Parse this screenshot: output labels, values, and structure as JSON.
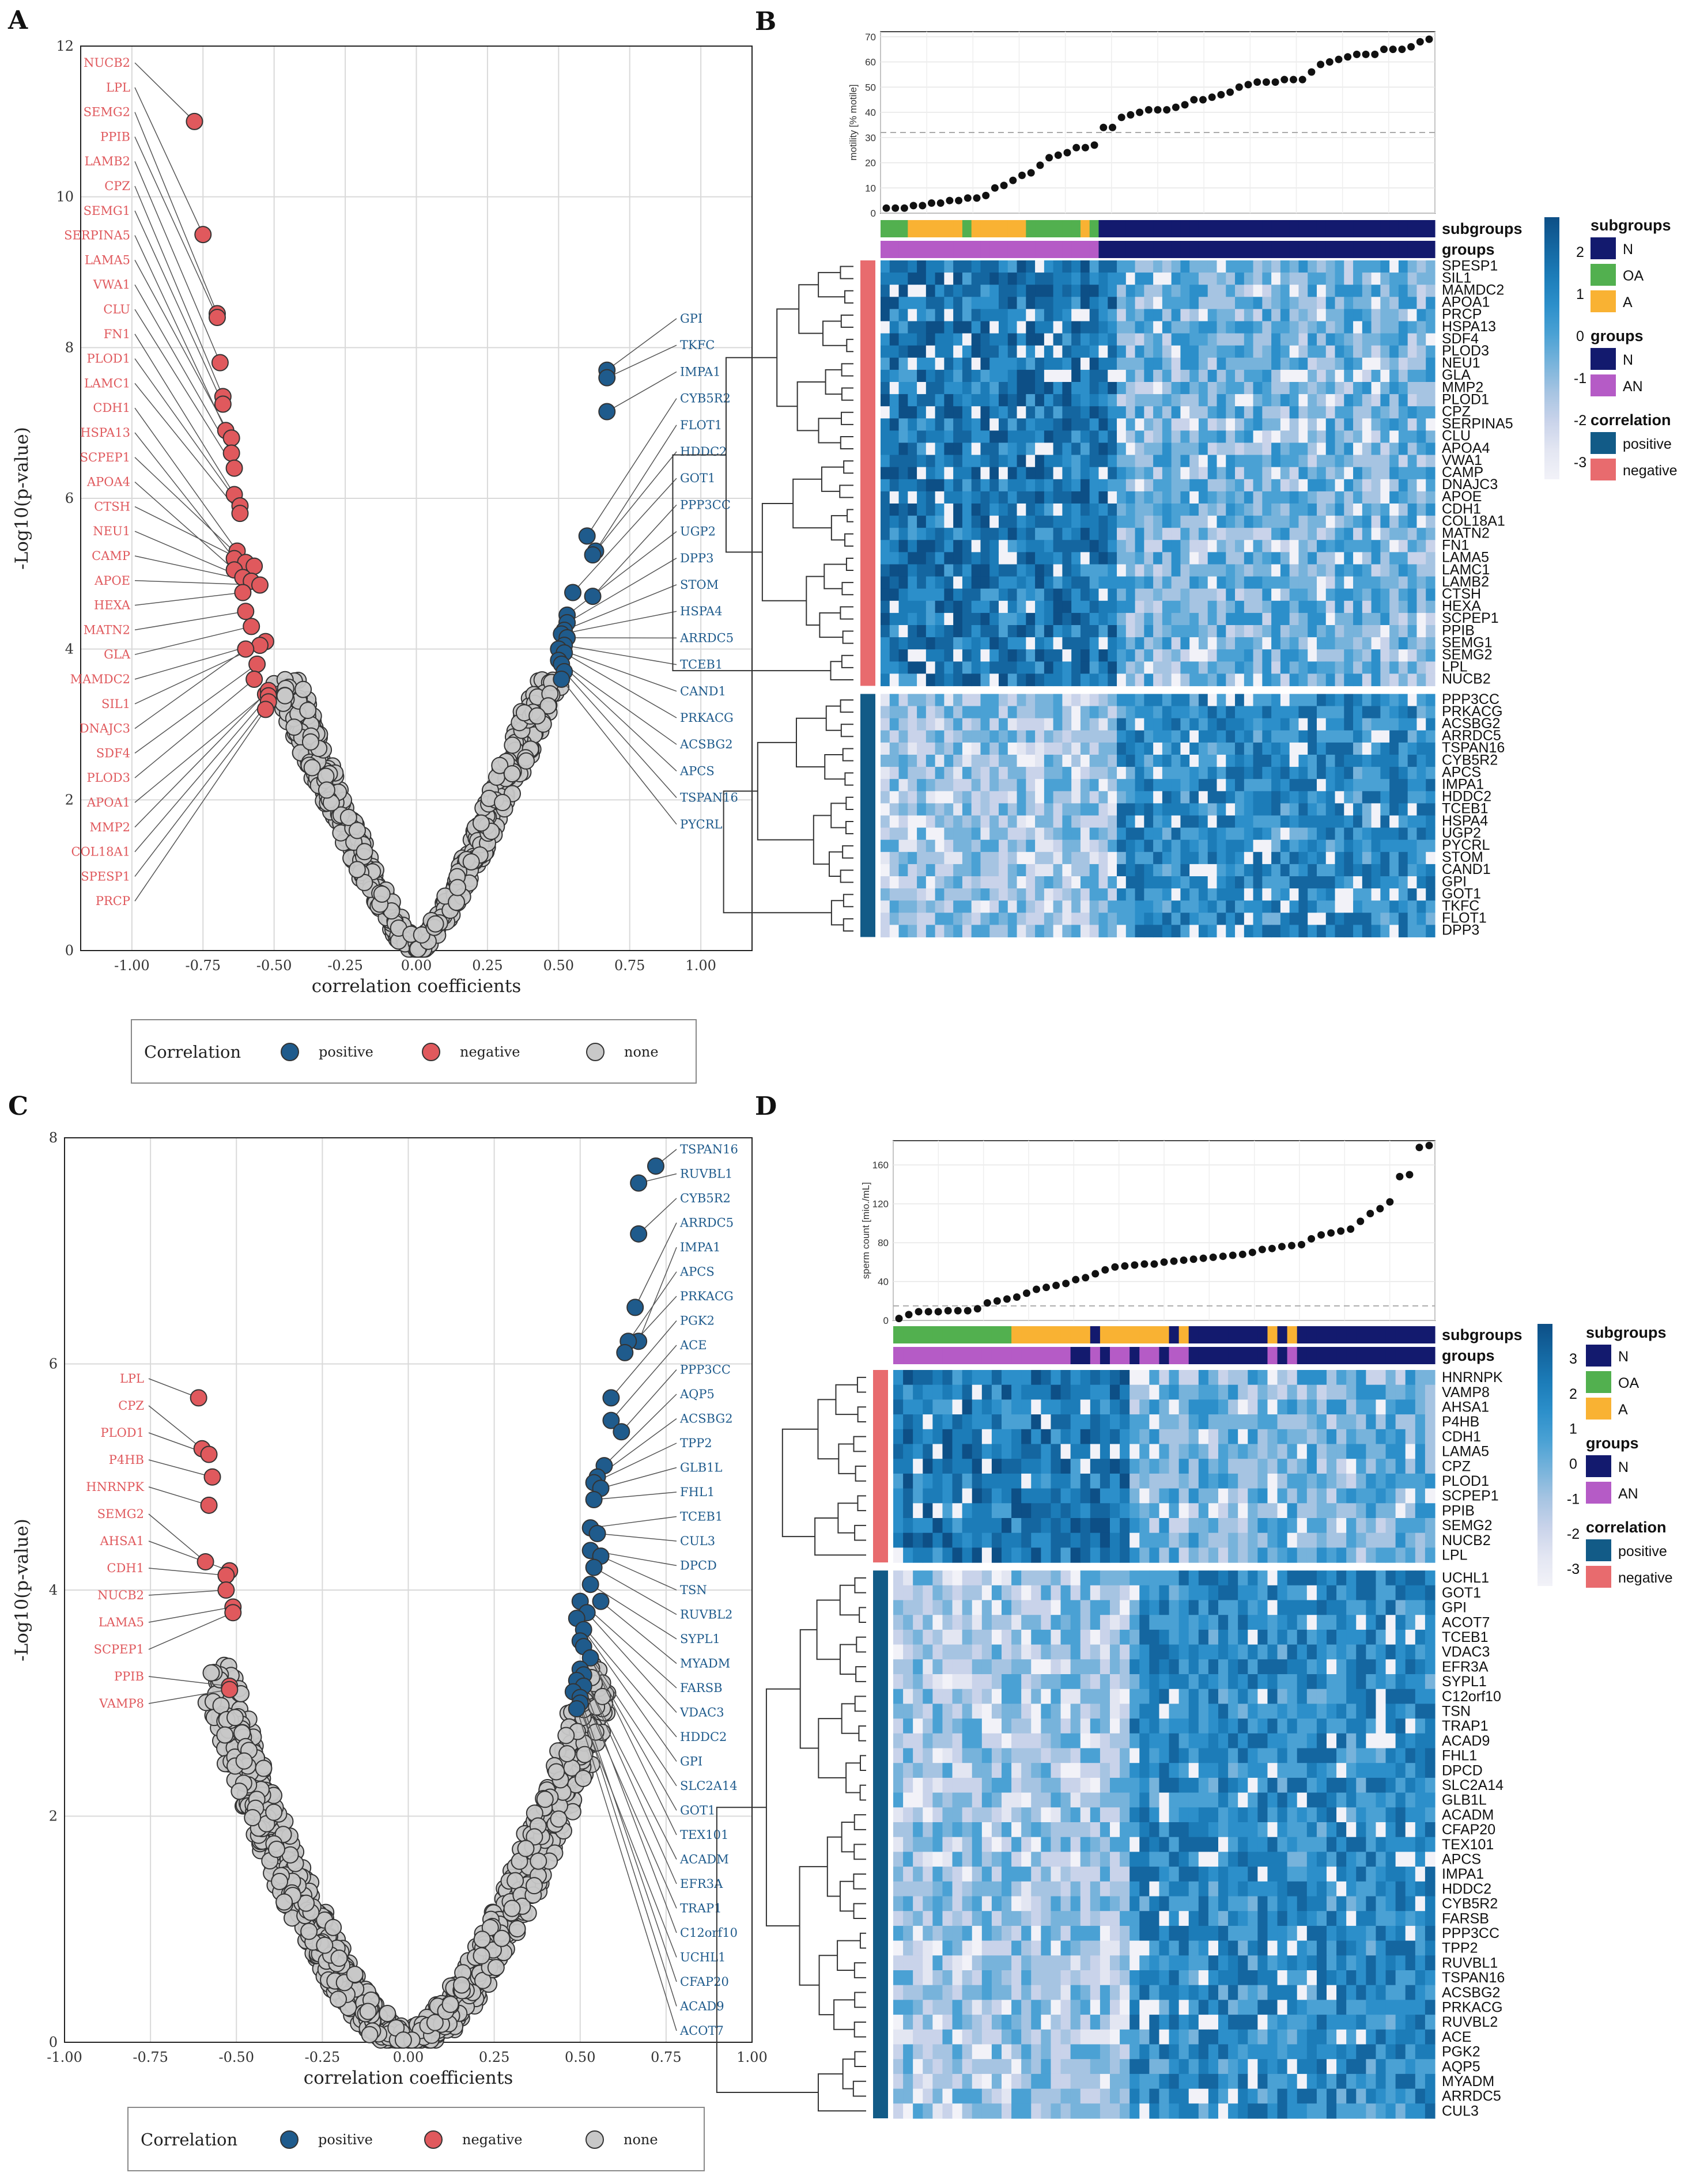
{
  "panels": {
    "A": "A",
    "B": "B",
    "C": "C",
    "D": "D"
  },
  "chart_data": [
    {
      "id": "A",
      "type": "scatter",
      "title": "",
      "xlabel": "correlation coefficients",
      "ylabel": "-Log10(p-value)",
      "xlim": [
        -1.18,
        1.18
      ],
      "ylim": [
        0,
        12
      ],
      "xticks": [
        -1.0,
        -0.75,
        -0.5,
        -0.25,
        0.0,
        0.25,
        0.5,
        0.75,
        1.0
      ],
      "xtick_labels": [
        "-1.00",
        "-0.75",
        "-0.50",
        "-0.25",
        "0.00",
        "0.25",
        "0.50",
        "0.75",
        "1.00"
      ],
      "yticks": [
        0,
        2,
        4,
        6,
        8,
        10,
        12
      ],
      "ytick_labels": [
        "0",
        "2",
        "4",
        "6",
        "8",
        "10",
        "12"
      ],
      "legend": {
        "title": "Correlation",
        "entries": [
          "positive",
          "negative",
          "none"
        ],
        "placement": "bottom"
      },
      "neg_labels": [
        "NUCB2",
        "LPL",
        "SEMG2",
        "PPIB",
        "LAMB2",
        "CPZ",
        "SEMG1",
        "SERPINA5",
        "LAMA5",
        "VWA1",
        "CLU",
        "FN1",
        "PLOD1",
        "LAMC1",
        "CDH1",
        "HSPA13",
        "SCPEP1",
        "APOA4",
        "CTSH",
        "NEU1",
        "CAMP",
        "APOE",
        "HEXA",
        "MATN2",
        "GLA",
        "MAMDC2",
        "SIL1",
        "DNAJC3",
        "SDF4",
        "PLOD3",
        "APOA1",
        "MMP2",
        "COL18A1",
        "SPESP1",
        "PRCP"
      ],
      "pos_labels": [
        "GPI",
        "TKFC",
        "IMPA1",
        "CYB5R2",
        "FLOT1",
        "HDDC2",
        "GOT1",
        "PPP3CC",
        "UGP2",
        "DPP3",
        "STOM",
        "HSPA4",
        "ARRDC5",
        "TCEB1",
        "CAND1",
        "PRKACG",
        "ACSBG2",
        "APCS",
        "TSPAN16",
        "PYCRL"
      ],
      "neg_points": [
        [
          -0.78,
          11.0
        ],
        [
          -0.75,
          9.5
        ],
        [
          -0.7,
          8.45
        ],
        [
          -0.7,
          8.4
        ],
        [
          -0.69,
          7.8
        ],
        [
          -0.68,
          7.35
        ],
        [
          -0.68,
          7.25
        ],
        [
          -0.67,
          6.9
        ],
        [
          -0.65,
          6.8
        ],
        [
          -0.65,
          6.6
        ],
        [
          -0.64,
          6.4
        ],
        [
          -0.64,
          6.05
        ],
        [
          -0.62,
          5.9
        ],
        [
          -0.62,
          5.8
        ],
        [
          -0.63,
          5.3
        ],
        [
          -0.64,
          5.2
        ],
        [
          -0.6,
          5.15
        ],
        [
          -0.64,
          5.05
        ],
        [
          -0.57,
          5.1
        ],
        [
          -0.61,
          4.95
        ],
        [
          -0.58,
          4.9
        ],
        [
          -0.55,
          4.85
        ],
        [
          -0.61,
          4.75
        ],
        [
          -0.6,
          4.5
        ],
        [
          -0.58,
          4.3
        ],
        [
          -0.53,
          4.1
        ],
        [
          -0.55,
          4.05
        ],
        [
          -0.6,
          4.0
        ],
        [
          -0.56,
          3.8
        ],
        [
          -0.57,
          3.6
        ],
        [
          -0.53,
          3.4
        ],
        [
          -0.52,
          3.45
        ],
        [
          -0.52,
          3.38
        ],
        [
          -0.52,
          3.3
        ],
        [
          -0.53,
          3.2
        ]
      ],
      "pos_points": [
        [
          0.67,
          7.7
        ],
        [
          0.67,
          7.6
        ],
        [
          0.67,
          7.15
        ],
        [
          0.6,
          5.5
        ],
        [
          0.63,
          5.3
        ],
        [
          0.62,
          5.25
        ],
        [
          0.55,
          4.75
        ],
        [
          0.62,
          4.7
        ],
        [
          0.53,
          4.45
        ],
        [
          0.53,
          4.35
        ],
        [
          0.52,
          4.25
        ],
        [
          0.51,
          4.2
        ],
        [
          0.53,
          4.15
        ],
        [
          0.52,
          4.05
        ],
        [
          0.5,
          4.0
        ],
        [
          0.52,
          3.95
        ],
        [
          0.5,
          3.85
        ],
        [
          0.51,
          3.8
        ],
        [
          0.52,
          3.7
        ],
        [
          0.51,
          3.6
        ]
      ]
    },
    {
      "id": "B",
      "type": "heatmap",
      "top_plot": {
        "type": "scatter",
        "ylabel": "motility [% motile]",
        "yticks": [
          0,
          10,
          20,
          30,
          40,
          50,
          60,
          70
        ],
        "ylim": [
          0,
          72
        ],
        "threshold": 32,
        "values": [
          2,
          2,
          2,
          3,
          3,
          4,
          4,
          5,
          5,
          6,
          6,
          7,
          10,
          11,
          13,
          15,
          16,
          19,
          22,
          23,
          24,
          26,
          26,
          27,
          34,
          34,
          38,
          39,
          40,
          41,
          41,
          41,
          42,
          43,
          45,
          45,
          46,
          47,
          48,
          50,
          51,
          52,
          52,
          52,
          53,
          53,
          53,
          56,
          59,
          60,
          61,
          62,
          63,
          63,
          63,
          65,
          65,
          65,
          66,
          68,
          69
        ]
      },
      "annotation_rows": [
        "subgroups",
        "groups"
      ],
      "scale": {
        "ticks": [
          "2",
          "1",
          "0",
          "-1",
          "-2",
          "-3"
        ]
      },
      "legends": [
        {
          "title": "subgroups",
          "entries": [
            "N",
            "OA",
            "A"
          ],
          "colors": [
            "#131a6e",
            "#52b04f",
            "#f9b233"
          ]
        },
        {
          "title": "groups",
          "entries": [
            "N",
            "AN"
          ],
          "colors": [
            "#131a6e",
            "#b55bc6"
          ]
        },
        {
          "title": "correlation",
          "entries": [
            "positive",
            "negative"
          ],
          "colors": [
            "#125b87",
            "#e86b6e"
          ]
        }
      ],
      "rows_negative": [
        "SPESP1",
        "SIL1",
        "MAMDC2",
        "APOA1",
        "PRCP",
        "HSPA13",
        "SDF4",
        "PLOD3",
        "NEU1",
        "GLA",
        "MMP2",
        "PLOD1",
        "CPZ",
        "SERPINA5",
        "CLU",
        "APOA4",
        "VWA1",
        "CAMP",
        "DNAJC3",
        "APOE",
        "CDH1",
        "COL18A1",
        "MATN2",
        "FN1",
        "LAMA5",
        "LAMC1",
        "LAMB2",
        "CTSH",
        "HEXA",
        "SCPEP1",
        "PPIB",
        "SEMG1",
        "SEMG2",
        "LPL",
        "NUCB2"
      ],
      "rows_positive": [
        "PPP3CC",
        "PRKACG",
        "ACSBG2",
        "ARRDC5",
        "TSPAN16",
        "CYB5R2",
        "APCS",
        "IMPA1",
        "HDDC2",
        "TCEB1",
        "HSPA4",
        "UGP2",
        "PYCRL",
        "STOM",
        "CAND1",
        "GPI",
        "GOT1",
        "TKFC",
        "FLOT1",
        "DPP3"
      ]
    },
    {
      "id": "C",
      "type": "scatter",
      "title": "",
      "xlabel": "correlation coefficients",
      "ylabel": "-Log10(p-value)",
      "xlim": [
        -1.0,
        1.0
      ],
      "ylim": [
        0,
        8
      ],
      "xticks": [
        -1.0,
        -0.75,
        -0.5,
        -0.25,
        0.0,
        0.25,
        0.5,
        0.75,
        1.0
      ],
      "xtick_labels": [
        "-1.00",
        "-0.75",
        "-0.50",
        "-0.25",
        "0.00",
        "0.25",
        "0.50",
        "0.75",
        "1.00"
      ],
      "yticks": [
        0,
        2,
        4,
        6,
        8
      ],
      "ytick_labels": [
        "0",
        "2",
        "4",
        "6",
        "8"
      ],
      "legend": {
        "title": "Correlation",
        "entries": [
          "positive",
          "negative",
          "none"
        ],
        "placement": "bottom"
      },
      "neg_labels": [
        "LPL",
        "CPZ",
        "PLOD1",
        "P4HB",
        "HNRNPK",
        "SEMG2",
        "AHSA1",
        "CDH1",
        "NUCB2",
        "LAMA5",
        "SCPEP1",
        "PPIB",
        "VAMP8"
      ],
      "pos_labels": [
        "TSPAN16",
        "RUVBL1",
        "CYB5R2",
        "ARRDC5",
        "IMPA1",
        "APCS",
        "PRKACG",
        "PGK2",
        "ACE",
        "PPP3CC",
        "AQP5",
        "ACSBG2",
        "TPP2",
        "GLB1L",
        "FHL1",
        "TCEB1",
        "CUL3",
        "DPCD",
        "TSN",
        "RUVBL2",
        "SYPL1",
        "MYADM",
        "FARSB",
        "VDAC3",
        "HDDC2",
        "GPI",
        "SLC2A14",
        "GOT1",
        "TEX101",
        "ACADM",
        "EFR3A",
        "TRAP1",
        "C12orf10",
        "UCHL1",
        "CFAP20",
        "ACAD9",
        "ACOT7"
      ],
      "neg_points": [
        [
          -0.61,
          5.7
        ],
        [
          -0.6,
          5.25
        ],
        [
          -0.58,
          5.2
        ],
        [
          -0.57,
          5.0
        ],
        [
          -0.58,
          4.75
        ],
        [
          -0.59,
          4.25
        ],
        [
          -0.52,
          4.17
        ],
        [
          -0.53,
          4.13
        ],
        [
          -0.53,
          4.0
        ],
        [
          -0.51,
          3.85
        ],
        [
          -0.51,
          3.8
        ],
        [
          -0.52,
          3.15
        ],
        [
          -0.52,
          3.12
        ]
      ],
      "pos_points": [
        [
          0.72,
          7.75
        ],
        [
          0.67,
          7.6
        ],
        [
          0.67,
          7.15
        ],
        [
          0.66,
          6.5
        ],
        [
          0.67,
          6.2
        ],
        [
          0.64,
          6.2
        ],
        [
          0.63,
          6.1
        ],
        [
          0.59,
          5.7
        ],
        [
          0.59,
          5.5
        ],
        [
          0.62,
          5.4
        ],
        [
          0.57,
          5.1
        ],
        [
          0.55,
          5.0
        ],
        [
          0.54,
          4.95
        ],
        [
          0.56,
          4.9
        ],
        [
          0.54,
          4.8
        ],
        [
          0.53,
          4.55
        ],
        [
          0.55,
          4.5
        ],
        [
          0.53,
          4.35
        ],
        [
          0.56,
          4.3
        ],
        [
          0.54,
          4.2
        ],
        [
          0.53,
          4.05
        ],
        [
          0.56,
          3.9
        ],
        [
          0.5,
          3.9
        ],
        [
          0.52,
          3.8
        ],
        [
          0.49,
          3.75
        ],
        [
          0.51,
          3.65
        ],
        [
          0.5,
          3.55
        ],
        [
          0.51,
          3.5
        ],
        [
          0.53,
          3.4
        ],
        [
          0.5,
          3.3
        ],
        [
          0.51,
          3.25
        ],
        [
          0.49,
          3.2
        ],
        [
          0.51,
          3.15
        ],
        [
          0.48,
          3.1
        ],
        [
          0.5,
          3.05
        ],
        [
          0.5,
          3.0
        ],
        [
          0.49,
          2.95
        ]
      ]
    },
    {
      "id": "D",
      "type": "heatmap",
      "top_plot": {
        "type": "scatter",
        "ylabel": "sperm count [mio./mL]",
        "yticks": [
          0,
          40,
          80,
          120,
          160
        ],
        "ylim": [
          0,
          185
        ],
        "threshold": 15,
        "values": [
          2,
          6,
          9,
          9,
          9,
          10,
          10,
          10,
          12,
          18,
          20,
          22,
          24,
          28,
          32,
          34,
          36,
          38,
          42,
          44,
          48,
          52,
          55,
          56,
          57,
          58,
          58,
          60,
          61,
          62,
          63,
          64,
          65,
          66,
          67,
          68,
          70,
          73,
          74,
          76,
          77,
          78,
          84,
          88,
          90,
          92,
          94,
          102,
          110,
          115,
          122,
          148,
          150,
          178,
          180
        ]
      },
      "annotation_rows": [
        "subgroups",
        "groups"
      ],
      "scale": {
        "ticks": [
          "3",
          "2",
          "1",
          "0",
          "-1",
          "-2",
          "-3"
        ]
      },
      "legends": [
        {
          "title": "subgroups",
          "entries": [
            "N",
            "OA",
            "A"
          ],
          "colors": [
            "#131a6e",
            "#52b04f",
            "#f9b233"
          ]
        },
        {
          "title": "groups",
          "entries": [
            "N",
            "AN"
          ],
          "colors": [
            "#131a6e",
            "#b55bc6"
          ]
        },
        {
          "title": "correlation",
          "entries": [
            "positive",
            "negative"
          ],
          "colors": [
            "#125b87",
            "#e86b6e"
          ]
        }
      ],
      "rows_negative": [
        "HNRNPK",
        "VAMP8",
        "AHSA1",
        "P4HB",
        "CDH1",
        "LAMA5",
        "CPZ",
        "PLOD1",
        "SCPEP1",
        "PPIB",
        "SEMG2",
        "NUCB2",
        "LPL"
      ],
      "rows_positive": [
        "UCHL1",
        "GOT1",
        "GPI",
        "ACOT7",
        "TCEB1",
        "VDAC3",
        "EFR3A",
        "SYPL1",
        "C12orf10",
        "TSN",
        "TRAP1",
        "ACAD9",
        "FHL1",
        "DPCD",
        "SLC2A14",
        "GLB1L",
        "ACADM",
        "CFAP20",
        "TEX101",
        "APCS",
        "IMPA1",
        "HDDC2",
        "CYB5R2",
        "FARSB",
        "PPP3CC",
        "TPP2",
        "RUVBL1",
        "TSPAN16",
        "ACSBG2",
        "PRKACG",
        "RUVBL2",
        "ACE",
        "PGK2",
        "AQP5",
        "MYADM",
        "ARRDC5",
        "CUL3"
      ]
    }
  ],
  "colors": {
    "positive": "#1f5b8c",
    "negative": "#e0595d",
    "none": "#c8c8c8"
  }
}
